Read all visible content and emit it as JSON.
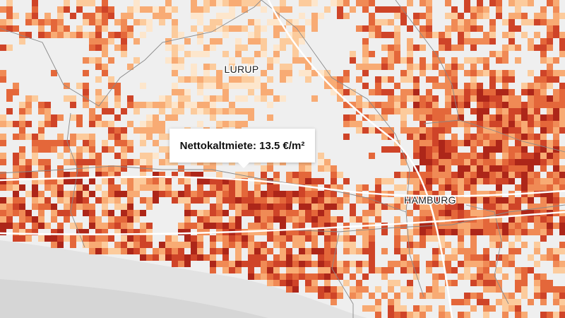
{
  "map": {
    "places": [
      "LURUP",
      "HAMBURG"
    ],
    "tooltip": "Nettokaltmiete: 13.5 €/m²"
  }
}
